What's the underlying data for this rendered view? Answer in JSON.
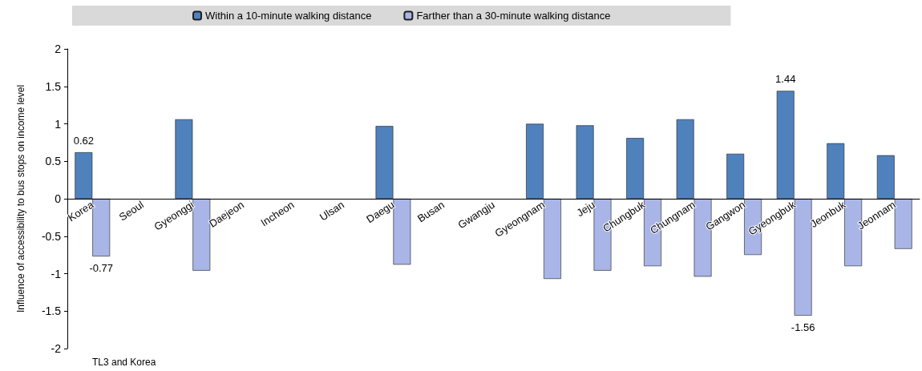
{
  "chart_data": {
    "type": "bar",
    "ylabel": "Influence of accessibility to bus stops on income level",
    "xlabel": "TL3 and Korea",
    "categories": [
      "Korea",
      "Seoul",
      "Gyeonggi",
      "Daejeon",
      "Incheon",
      "Ulsan",
      "Daegu",
      "Busan",
      "Gwangju",
      "Gyeongnam",
      "Jeju",
      "Chungbuk",
      "Chungnam",
      "Gangwon",
      "Gyeongbuk",
      "Jeonbuk",
      "Jeonnam"
    ],
    "series": [
      {
        "name": "Within a 10-minute walking distance",
        "color": "#4f81bd",
        "values": [
          0.62,
          null,
          1.06,
          null,
          null,
          null,
          0.97,
          null,
          null,
          1.0,
          0.98,
          0.81,
          1.06,
          0.6,
          1.44,
          0.74,
          0.58
        ],
        "value_labels": [
          "0.62",
          null,
          null,
          null,
          null,
          null,
          null,
          null,
          null,
          null,
          null,
          null,
          null,
          null,
          "1.44",
          null,
          null
        ]
      },
      {
        "name": "Farther than a 30-minute walking distance",
        "color": "#a9b5e6",
        "values": [
          -0.77,
          null,
          -0.96,
          null,
          null,
          null,
          -0.88,
          null,
          null,
          -1.07,
          -0.96,
          -0.9,
          -1.04,
          -0.75,
          -1.56,
          -0.9,
          -0.67
        ],
        "value_labels": [
          "-0.77",
          null,
          null,
          null,
          null,
          null,
          null,
          null,
          null,
          null,
          null,
          null,
          null,
          null,
          "-1.56",
          null,
          null
        ]
      }
    ],
    "ylim": [
      -2,
      2
    ],
    "yticks": [
      -2,
      -1.5,
      -1,
      -0.5,
      0,
      0.5,
      1,
      1.5,
      2
    ],
    "legend": "top"
  }
}
